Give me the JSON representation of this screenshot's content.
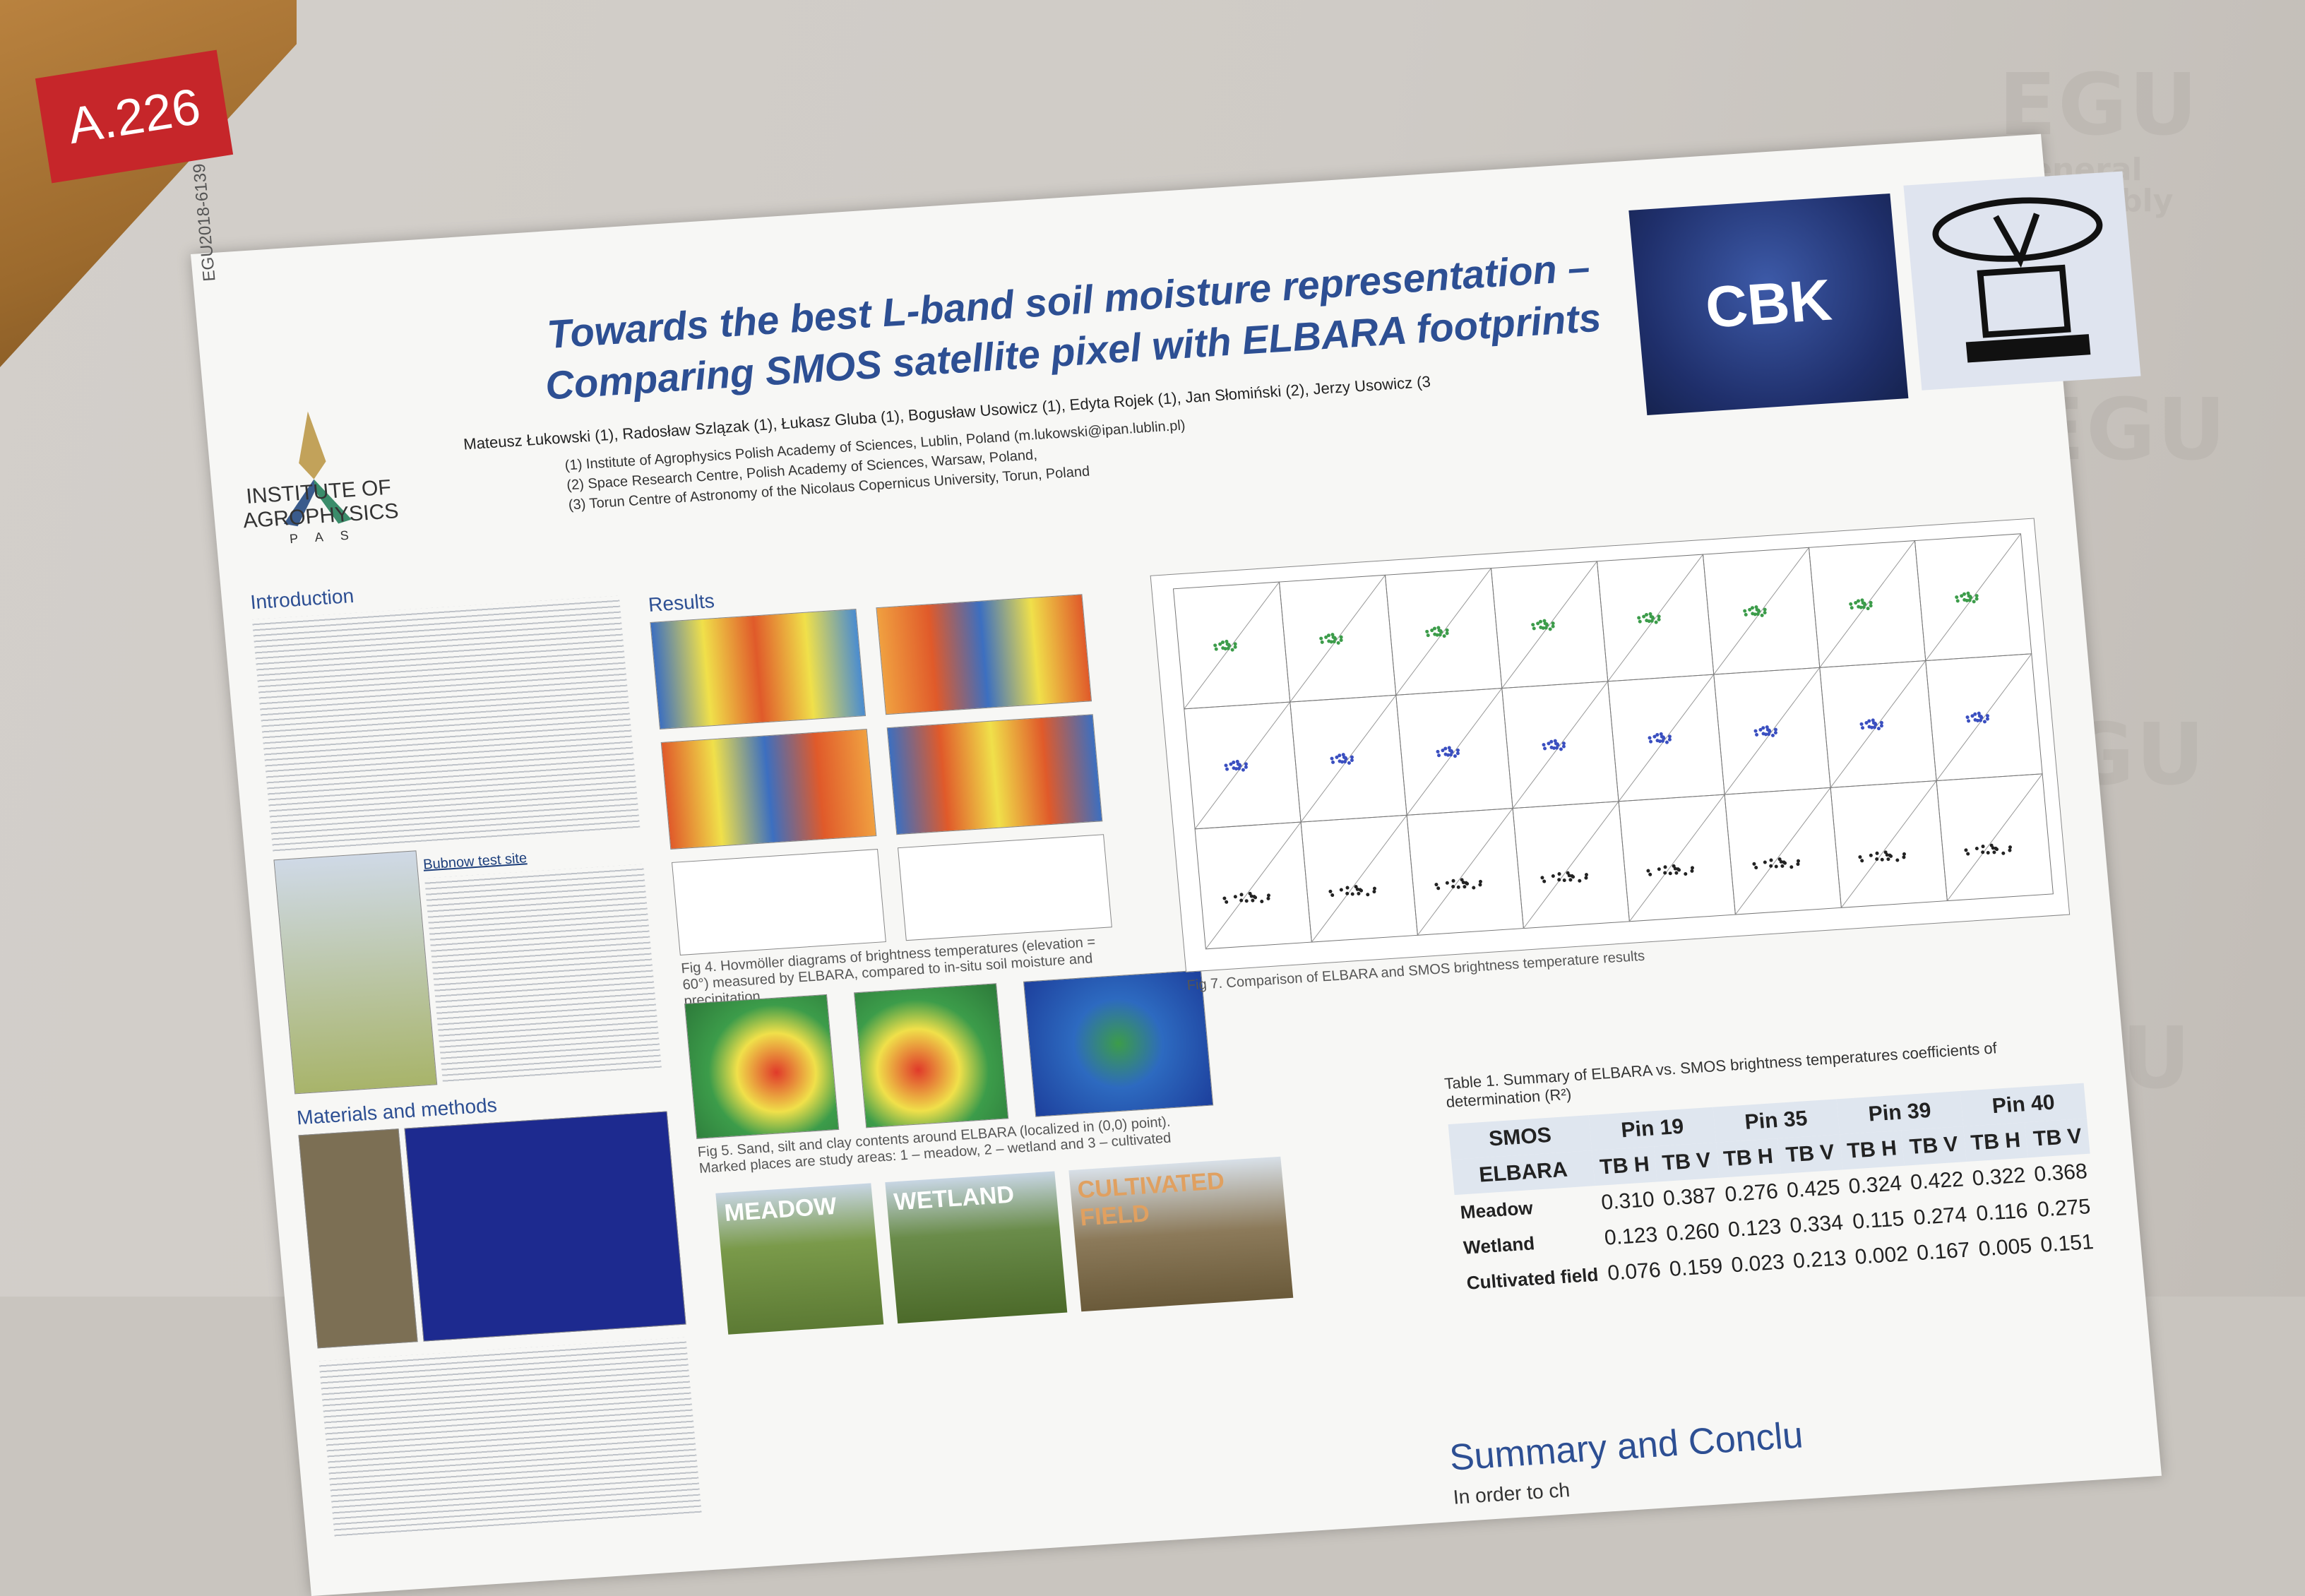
{
  "board_number": "A.226",
  "background": {
    "brand_text": "EGU",
    "brand_sub_1": "General",
    "brand_sub_2": "Assembly"
  },
  "poster": {
    "id_code": "EGU2018-6139",
    "title_line1": "Towards the best L-band soil moisture representation –",
    "title_line2": "Comparing SMOS satellite pixel with ELBARA footprints",
    "authors": "Mateusz Łukowski (1), Radosław Szlązak (1), Łukasz Gluba (1), Bogusław Usowicz (1), Edyta Rojek (1), Jan Słomiński (2), Jerzy Usowicz (3",
    "affiliations": [
      "(1) Institute of Agrophysics Polish Academy of Sciences, Lublin, Poland (m.lukowski@ipan.lublin.pl)",
      "(2) Space Research Centre, Polish Academy of Sciences, Warsaw, Poland,",
      "(3) Torun Centre of Astronomy of the Nicolaus Copernicus University, Torun, Poland"
    ],
    "institute_name": "INSTITUTE OF AGROPHYSICS",
    "institute_sub": "P A S",
    "cbk_logo": "CBK",
    "sections": {
      "introduction": "Introduction",
      "results": "Results",
      "materials": "Materials and methods",
      "summary": "Summary and Conclu"
    },
    "fig7_caption": "Fig 7. Comparison of ELBARA and SMOS brightness temperature results",
    "fig4_caption": "Fig 4. Hovmöller diagrams of brightness temperatures (elevation = 60°) measured by ELBARA, compared to in-situ soil moisture and precipitation",
    "fig5_caption": "Fig 5. Sand, silt and clay contents around ELBARA (localized in (0,0) point). Marked places are study areas: 1 – meadow, 2 – wetland and 3 – cultivated",
    "bubnow_label": "Bubnow test site",
    "photos": [
      "MEADOW",
      "WETLAND",
      "CULTIVATED FIELD"
    ],
    "summary_text": "In order to ch"
  },
  "table": {
    "caption": "Table 1. Summary of ELBARA vs. SMOS brightness temperatures coefficients of determination (R²)",
    "corner_top": "SMOS",
    "corner_bottom": "ELBARA",
    "pins": [
      "Pin 19",
      "Pin 35",
      "Pin 39",
      "Pin 40"
    ],
    "subheaders": [
      "TB H",
      "TB V",
      "TB H",
      "TB V",
      "TB H",
      "TB V",
      "TB H",
      "TB V"
    ],
    "rows": [
      {
        "label": "Meadow",
        "values": [
          "0.310",
          "0.387",
          "0.276",
          "0.425",
          "0.324",
          "0.422",
          "0.322",
          "0.368"
        ]
      },
      {
        "label": "Wetland",
        "values": [
          "0.123",
          "0.260",
          "0.123",
          "0.334",
          "0.115",
          "0.274",
          "0.116",
          "0.275"
        ]
      },
      {
        "label": "Cultivated field",
        "values": [
          "0.076",
          "0.159",
          "0.023",
          "0.213",
          "0.002",
          "0.167",
          "0.005",
          "0.151"
        ]
      }
    ]
  }
}
